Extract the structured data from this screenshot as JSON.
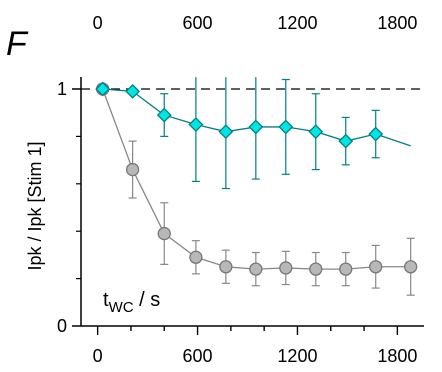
{
  "panel_letter": "F",
  "chart_data": {
    "type": "line",
    "ylabel": "Ipk / Ipk [Stim 1]",
    "xlabel_annotation": {
      "main": "t",
      "sub": "WC",
      "rest": " / s"
    },
    "xlim": [
      -100,
      1960
    ],
    "ylim": [
      0,
      1.05
    ],
    "x_ticks": [
      0,
      600,
      1200,
      1800
    ],
    "x_tick_labels": [
      "0",
      "600",
      "1200",
      "1800"
    ],
    "top_tick_labels": [
      "0",
      "600",
      "1200",
      "1800"
    ],
    "y_ticks": [
      0,
      1
    ],
    "y_tick_labels": [
      "0",
      "1"
    ],
    "y_minor_ticks": [
      0.2,
      0.4,
      0.6,
      0.8
    ],
    "reference_line": 1.0,
    "series": [
      {
        "marker": "diamond",
        "color": "#00e5e5",
        "edge": "#008080",
        "line_color": "#008080",
        "points": [
          {
            "x": 30,
            "y": 1.0,
            "err": 0.0
          },
          {
            "x": 210,
            "y": 0.99,
            "err": 0.0
          },
          {
            "x": 400,
            "y": 0.89,
            "err": 0.09
          },
          {
            "x": 590,
            "y": 0.85,
            "err": 0.24
          },
          {
            "x": 770,
            "y": 0.82,
            "err": 0.24
          },
          {
            "x": 950,
            "y": 0.84,
            "err": 0.22
          },
          {
            "x": 1130,
            "y": 0.84,
            "err": 0.2
          },
          {
            "x": 1310,
            "y": 0.82,
            "err": 0.16
          },
          {
            "x": 1490,
            "y": 0.78,
            "err": 0.1
          },
          {
            "x": 1670,
            "y": 0.81,
            "err": 0.1
          },
          {
            "x": 1880,
            "y": 0.76,
            "err": 0.0
          }
        ]
      },
      {
        "marker": "circle",
        "color": "#b8b8b8",
        "edge": "#777777",
        "line_color": "#888888",
        "points": [
          {
            "x": 30,
            "y": 1.0,
            "err": 0.0
          },
          {
            "x": 210,
            "y": 0.66,
            "err": 0.12
          },
          {
            "x": 400,
            "y": 0.39,
            "err": 0.13
          },
          {
            "x": 590,
            "y": 0.29,
            "err": 0.07
          },
          {
            "x": 770,
            "y": 0.25,
            "err": 0.07
          },
          {
            "x": 950,
            "y": 0.24,
            "err": 0.07
          },
          {
            "x": 1130,
            "y": 0.245,
            "err": 0.07
          },
          {
            "x": 1310,
            "y": 0.24,
            "err": 0.07
          },
          {
            "x": 1490,
            "y": 0.24,
            "err": 0.07
          },
          {
            "x": 1670,
            "y": 0.25,
            "err": 0.09
          },
          {
            "x": 1880,
            "y": 0.25,
            "err": 0.12
          }
        ]
      }
    ]
  }
}
